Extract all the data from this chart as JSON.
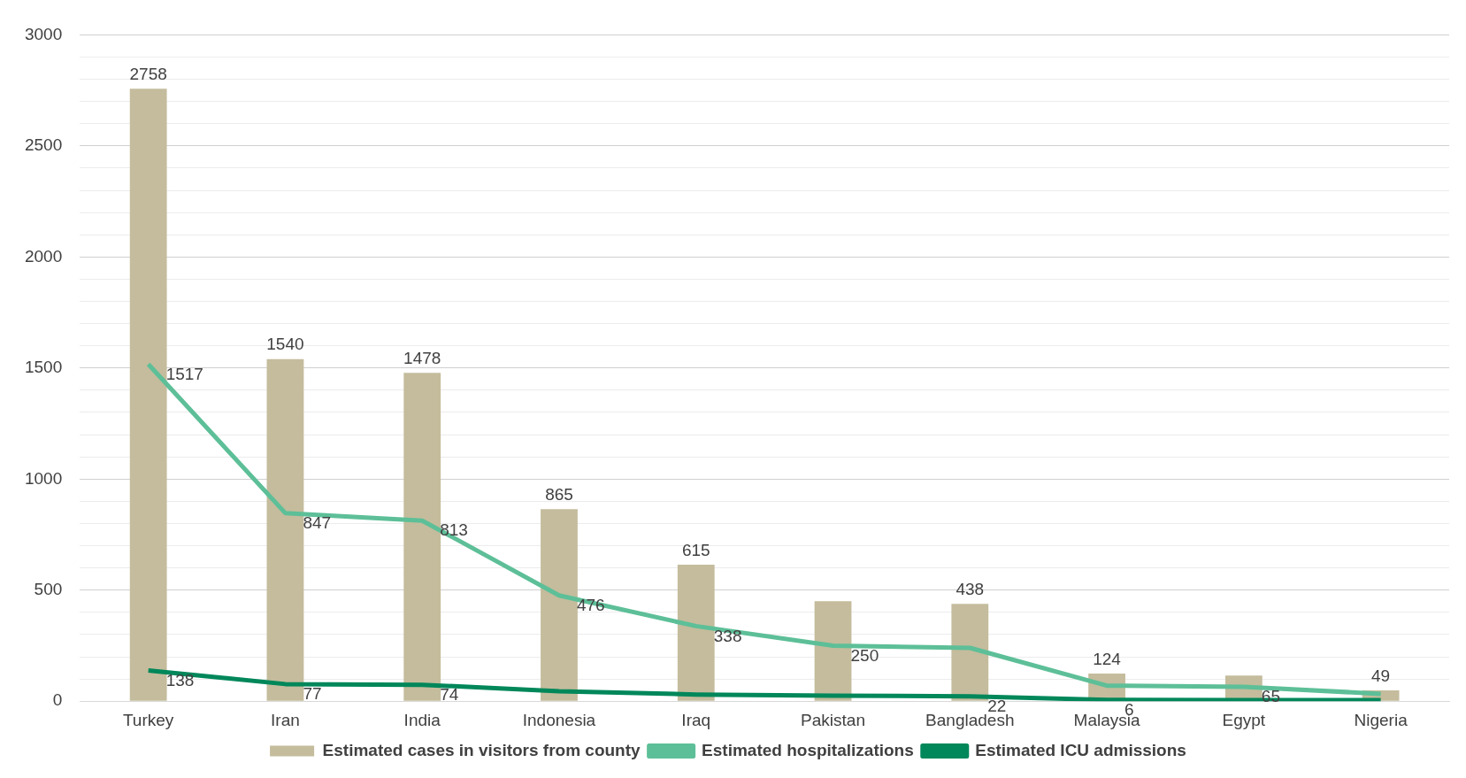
{
  "chart_data": {
    "type": "bar",
    "categories": [
      "Turkey",
      "Iran",
      "India",
      "Indonesia",
      "Iraq",
      "Pakistan",
      "Bangladesh",
      "Malaysia",
      "Egypt",
      "Nigeria"
    ],
    "series": [
      {
        "name": "Estimated cases in visitors from county",
        "color": "#c4bc9c",
        "values": [
          2758,
          1540,
          1478,
          865,
          615,
          450,
          438,
          124,
          115,
          49
        ],
        "value_labels": [
          "2758",
          "1540",
          "1478",
          "865",
          "615",
          null,
          "438",
          "124",
          null,
          "49"
        ]
      },
      {
        "name": "Estimated hospitalizations",
        "type": "line",
        "color": "#5dbf98",
        "values": [
          1517,
          847,
          813,
          476,
          338,
          250,
          240,
          70,
          65,
          33
        ],
        "value_labels": [
          "1517",
          "847",
          "813",
          "476",
          "338",
          "250",
          null,
          null,
          "65",
          null
        ]
      },
      {
        "name": "Estimated ICU admissions",
        "type": "line",
        "color": "#00875a",
        "values": [
          138,
          77,
          74,
          45,
          30,
          25,
          22,
          6,
          5,
          5
        ],
        "value_labels": [
          "138",
          "77",
          "74",
          null,
          null,
          null,
          "22",
          "6",
          null,
          null
        ]
      }
    ],
    "ylim": [
      0,
      3000
    ],
    "yticks": [
      0,
      {
        "value": 100,
        "label": null
      },
      {
        "value": 200,
        "label": null
      },
      {
        "value": 300,
        "label": null
      },
      {
        "value": 400,
        "label": null
      },
      500,
      {
        "value": 600,
        "label": null
      },
      {
        "value": 700,
        "label": null
      },
      {
        "value": 800,
        "label": null
      },
      {
        "value": 900,
        "label": null
      },
      1000,
      {
        "value": 1100,
        "label": null
      },
      {
        "value": 1200,
        "label": null
      },
      {
        "value": 1300,
        "label": null
      },
      {
        "value": 1400,
        "label": null
      },
      1500,
      {
        "value": 1600,
        "label": null
      },
      {
        "value": 1700,
        "label": null
      },
      {
        "value": 1800,
        "label": null
      },
      {
        "value": 1900,
        "label": null
      },
      2000,
      {
        "value": 2100,
        "label": null
      },
      {
        "value": 2200,
        "label": null
      },
      {
        "value": 2300,
        "label": null
      },
      {
        "value": 2400,
        "label": null
      },
      2500,
      {
        "value": 2600,
        "label": null
      },
      {
        "value": 2700,
        "label": null
      },
      {
        "value": 2800,
        "label": null
      },
      {
        "value": 2900,
        "label": null
      },
      3000
    ],
    "grid": "y",
    "legend": "bottom",
    "marker": "none",
    "line_style": "solid"
  }
}
